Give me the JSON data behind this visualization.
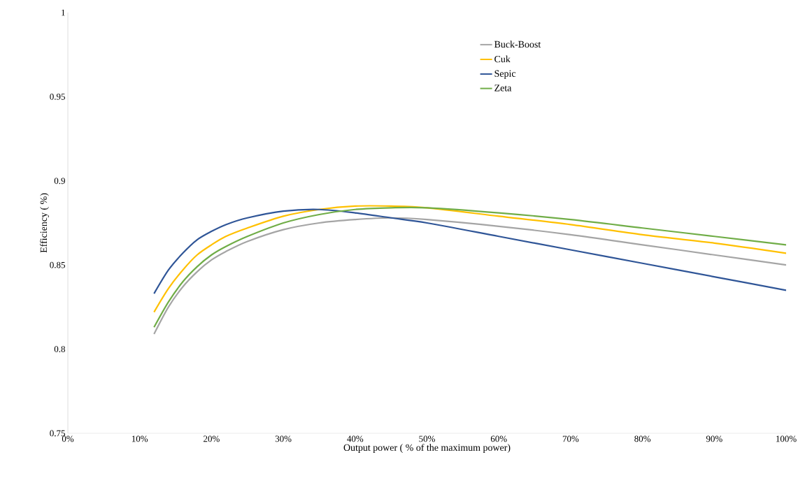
{
  "chart_data": {
    "type": "line",
    "xlabel": "Output power ( % of the maximum power)",
    "ylabel": "Efficiency ( %)",
    "x": [
      12,
      14,
      16,
      18,
      20,
      22,
      25,
      30,
      35,
      40,
      45,
      50,
      60,
      70,
      80,
      90,
      100
    ],
    "series": [
      {
        "name": "Buck-Boost",
        "color": "#a5a5a5",
        "values": [
          0.809,
          0.825,
          0.837,
          0.846,
          0.853,
          0.858,
          0.864,
          0.871,
          0.875,
          0.877,
          0.878,
          0.877,
          0.873,
          0.868,
          0.862,
          0.856,
          0.85
        ]
      },
      {
        "name": "Cuk",
        "color": "#ffc000",
        "values": [
          0.822,
          0.836,
          0.847,
          0.856,
          0.862,
          0.867,
          0.872,
          0.879,
          0.883,
          0.885,
          0.885,
          0.884,
          0.879,
          0.874,
          0.868,
          0.863,
          0.857
        ]
      },
      {
        "name": "Sepic",
        "color": "#2f5597",
        "values": [
          0.833,
          0.847,
          0.857,
          0.865,
          0.87,
          0.874,
          0.878,
          0.882,
          0.883,
          0.881,
          0.878,
          0.875,
          0.867,
          0.859,
          0.851,
          0.843,
          0.835
        ]
      },
      {
        "name": "Zeta",
        "color": "#70ad47",
        "values": [
          0.813,
          0.828,
          0.84,
          0.849,
          0.856,
          0.861,
          0.867,
          0.875,
          0.88,
          0.883,
          0.884,
          0.884,
          0.881,
          0.877,
          0.872,
          0.867,
          0.862
        ]
      }
    ],
    "xlim": [
      0,
      100
    ],
    "ylim": [
      0.75,
      1
    ],
    "xticks": [
      {
        "value": 0,
        "label": "0%"
      },
      {
        "value": 10,
        "label": "10%"
      },
      {
        "value": 20,
        "label": "20%"
      },
      {
        "value": 30,
        "label": "30%"
      },
      {
        "value": 40,
        "label": "40%"
      },
      {
        "value": 50,
        "label": "50%"
      },
      {
        "value": 60,
        "label": "60%"
      },
      {
        "value": 70,
        "label": "70%"
      },
      {
        "value": 80,
        "label": "80%"
      },
      {
        "value": 90,
        "label": "90%"
      },
      {
        "value": 100,
        "label": "100%"
      }
    ],
    "yticks": [
      0.75,
      0.8,
      0.85,
      0.9,
      0.95,
      1
    ],
    "grid": false,
    "legend": "top right",
    "marker": "none",
    "line_style": "solid"
  }
}
